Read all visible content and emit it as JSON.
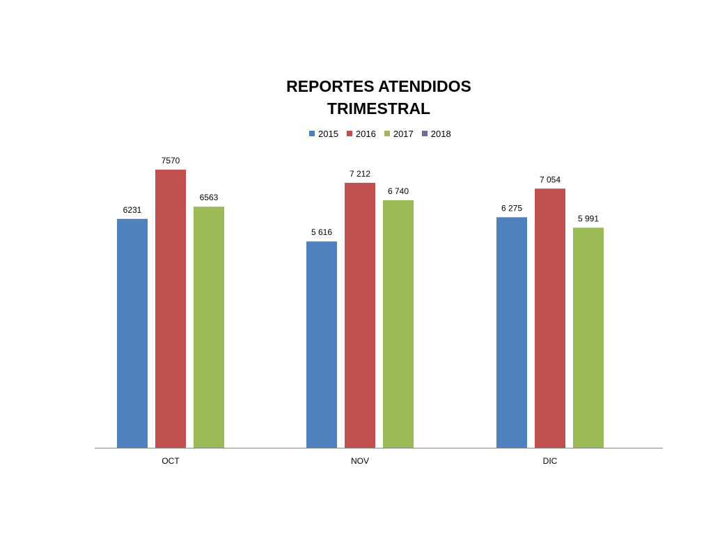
{
  "chart_data": {
    "type": "bar",
    "title_lines": [
      "REPORTES ATENDIDOS",
      "TRIMESTRAL"
    ],
    "categories": [
      "OCT",
      "NOV",
      "DIC"
    ],
    "series": [
      {
        "name": "2015",
        "color": "#4F81BD",
        "values": [
          6231,
          5616,
          6275
        ],
        "labels": [
          "6231",
          "5 616",
          "6 275"
        ]
      },
      {
        "name": "2016",
        "color": "#C0504D",
        "values": [
          7570,
          7212,
          7054
        ],
        "labels": [
          "7570",
          "7 212",
          "7 054"
        ]
      },
      {
        "name": "2017",
        "color": "#9BBB59",
        "values": [
          6563,
          6740,
          5991
        ],
        "labels": [
          "6563",
          "6 740",
          "5 991"
        ]
      },
      {
        "name": "2018",
        "color": "#8064A2",
        "values": [
          null,
          null,
          null
        ],
        "labels": [
          "",
          "",
          ""
        ]
      }
    ],
    "ylim": [
      0,
      8000
    ],
    "grid": false,
    "legend_position": "top"
  }
}
